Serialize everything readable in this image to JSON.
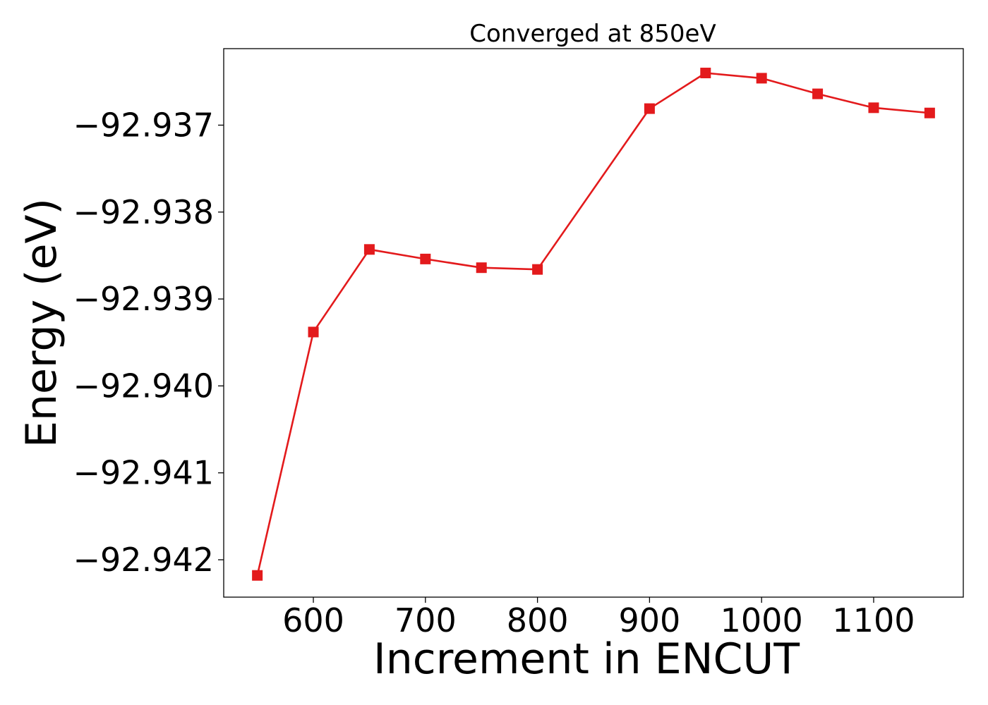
{
  "chart_data": {
    "type": "line",
    "title": "Converged at 850eV",
    "xlabel": "Increment in ENCUT",
    "ylabel": "Energy (eV)",
    "x": [
      550,
      600,
      650,
      700,
      750,
      800,
      900,
      950,
      1000,
      1050,
      1100,
      1150
    ],
    "series": [
      {
        "values": [
          -92.94218,
          -92.93938,
          -92.93843,
          -92.93854,
          -92.93864,
          -92.93866,
          -92.93681,
          -92.9364,
          -92.93646,
          -92.93664,
          -92.9368,
          -92.93686
        ],
        "color": "#e31a1c",
        "marker": "square"
      }
    ],
    "xlim": [
      520,
      1180
    ],
    "ylim": [
      -92.94243,
      -92.93612
    ],
    "xticks": [
      600,
      700,
      800,
      900,
      1000,
      1100
    ],
    "xtick_labels": [
      "600",
      "700",
      "800",
      "900",
      "1000",
      "1100"
    ],
    "yticks": [
      -92.942,
      -92.941,
      -92.94,
      -92.939,
      -92.938,
      -92.937
    ],
    "ytick_labels": [
      "−92.942",
      "−92.941",
      "−92.940",
      "−92.939",
      "−92.938",
      "−92.937"
    ],
    "grid": false,
    "legend": "none"
  }
}
